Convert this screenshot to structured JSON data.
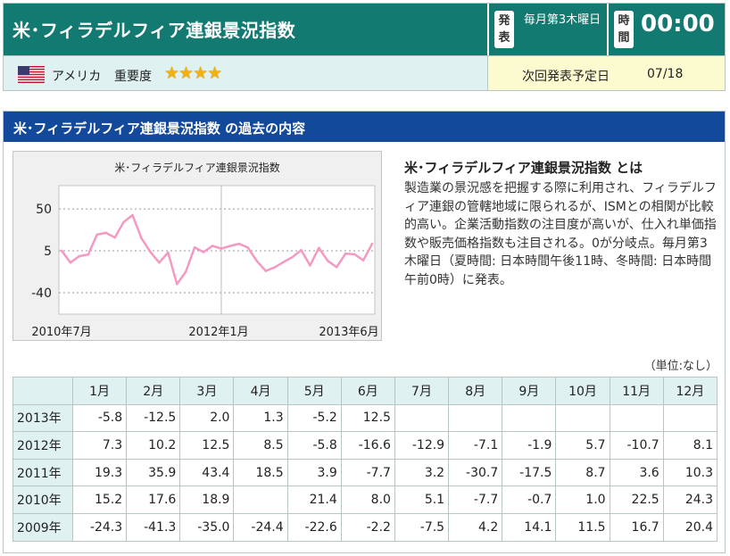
{
  "header": {
    "title": "米･フィラデルフィア連銀景況指数",
    "publish_badge": "発表",
    "publish_schedule": "毎月第3木曜日",
    "time_badge": "時間",
    "time": "00:00",
    "country": "アメリカ",
    "importance_label": "重要度",
    "importance_stars": 4,
    "next_release_label": "次回発表予定日",
    "next_release_date": "07/18",
    "colors": {
      "header_bg": "#137a72",
      "info_bg": "#dff1f1",
      "next_bg": "#fcfbd0",
      "star": "#f2b20b"
    }
  },
  "past": {
    "title": "米･フィラデルフィア連銀景況指数 の過去の内容",
    "header_color": "#13499a"
  },
  "about": {
    "title": "米･フィラデルフィア連銀景況指数 とは",
    "text": "製造業の景況感を把握する際に利用され、フィラデルフィア連銀の管轄地域に限られるが、ISMとの相関が比較的高い。企業活動指数の注目度が高いが、仕入れ単価指数や販売価格指数も注目される。0が分岐点。毎月第3木曜日（夏時間: 日本時間午後11時、冬時間: 日本時間午前0時）に発表。"
  },
  "chart_data": {
    "type": "line",
    "title": "米･フィラデルフィア連銀景況指数",
    "xlabel": "",
    "ylabel": "",
    "x_tick_labels": [
      "2010年7月",
      "2012年1月",
      "2013年6月"
    ],
    "y_ticks": [
      50,
      5,
      -40
    ],
    "ylim": [
      -63,
      75
    ],
    "grid": "dotted horizontal at y ticks, vertical at 2012年1月",
    "line_color": "#f49ac2",
    "x": [
      "2010-07",
      "2010-08",
      "2010-09",
      "2010-10",
      "2010-11",
      "2010-12",
      "2011-01",
      "2011-02",
      "2011-03",
      "2011-04",
      "2011-05",
      "2011-06",
      "2011-07",
      "2011-08",
      "2011-09",
      "2011-10",
      "2011-11",
      "2011-12",
      "2012-01",
      "2012-02",
      "2012-03",
      "2012-04",
      "2012-05",
      "2012-06",
      "2012-07",
      "2012-08",
      "2012-09",
      "2012-10",
      "2012-11",
      "2012-12",
      "2013-01",
      "2013-02",
      "2013-03",
      "2013-04",
      "2013-05",
      "2013-06"
    ],
    "values": [
      5.1,
      -7.7,
      -0.7,
      1.0,
      22.5,
      24.3,
      19.3,
      35.9,
      43.4,
      18.5,
      3.9,
      -7.7,
      3.2,
      -30.7,
      -17.5,
      8.7,
      3.6,
      10.3,
      7.3,
      10.2,
      12.5,
      8.5,
      -5.8,
      -16.6,
      -12.9,
      -7.1,
      -1.9,
      5.7,
      -10.7,
      8.1,
      -5.8,
      -12.5,
      2.0,
      1.3,
      -5.2,
      12.5
    ]
  },
  "table": {
    "unit_note": "（単位:なし）",
    "months": [
      "1月",
      "2月",
      "3月",
      "4月",
      "5月",
      "6月",
      "7月",
      "8月",
      "9月",
      "10月",
      "11月",
      "12月"
    ],
    "rows": [
      {
        "year": "2013年",
        "values": [
          "-5.8",
          "-12.5",
          "2.0",
          "1.3",
          "-5.2",
          "12.5",
          "",
          "",
          "",
          "",
          "",
          ""
        ]
      },
      {
        "year": "2012年",
        "values": [
          "7.3",
          "10.2",
          "12.5",
          "8.5",
          "-5.8",
          "-16.6",
          "-12.9",
          "-7.1",
          "-1.9",
          "5.7",
          "-10.7",
          "8.1"
        ]
      },
      {
        "year": "2011年",
        "values": [
          "19.3",
          "35.9",
          "43.4",
          "18.5",
          "3.9",
          "-7.7",
          "3.2",
          "-30.7",
          "-17.5",
          "8.7",
          "3.6",
          "10.3"
        ]
      },
      {
        "year": "2010年",
        "values": [
          "15.2",
          "17.6",
          "18.9",
          "",
          "21.4",
          "8.0",
          "5.1",
          "-7.7",
          "-0.7",
          "1.0",
          "22.5",
          "24.3"
        ]
      },
      {
        "year": "2009年",
        "values": [
          "-24.3",
          "-41.3",
          "-35.0",
          "-24.4",
          "-22.6",
          "-2.2",
          "-7.5",
          "4.2",
          "14.1",
          "11.5",
          "16.7",
          "20.4"
        ]
      }
    ]
  }
}
